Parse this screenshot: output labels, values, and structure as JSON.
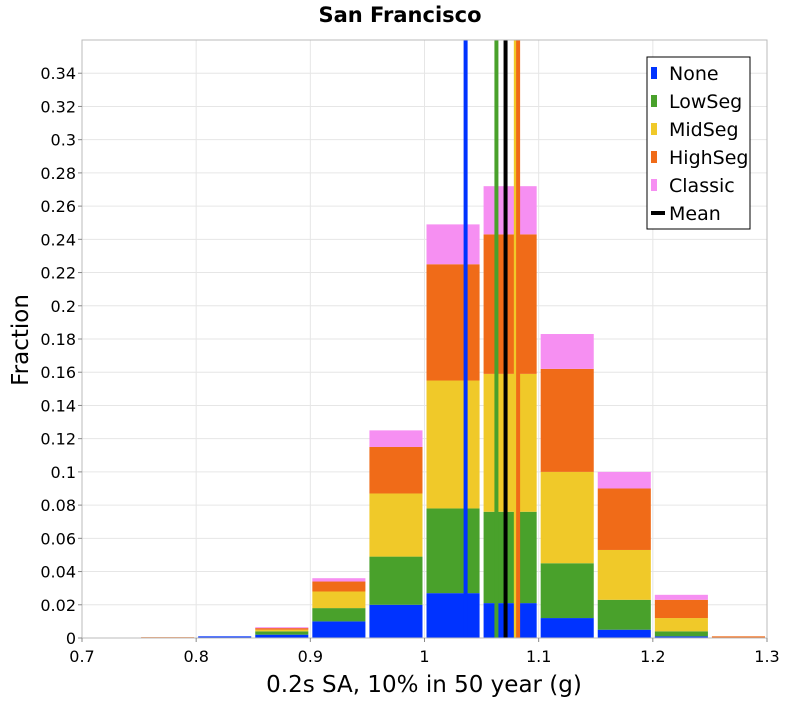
{
  "chart_data": {
    "type": "bar",
    "title": "San Francisco",
    "xlabel": "0.2s SA, 10% in 50 year (g)",
    "ylabel": "Fraction",
    "xlim": [
      0.7,
      1.3
    ],
    "ylim": [
      0,
      0.36
    ],
    "grid": true,
    "legend_position": "top-right",
    "x_ticks": [
      "0.7",
      "0.8",
      "0.9",
      "1",
      "1.1",
      "1.2",
      "1.3"
    ],
    "x_tick_values": [
      0.7,
      0.8,
      0.9,
      1.0,
      1.1,
      1.2,
      1.3
    ],
    "y_ticks": [
      "0",
      "0.02",
      "0.04",
      "0.06",
      "0.08",
      "0.1",
      "0.12",
      "0.14",
      "0.16",
      "0.18",
      "0.2",
      "0.22",
      "0.24",
      "0.26",
      "0.28",
      "0.3",
      "0.32",
      "0.34"
    ],
    "y_tick_values": [
      0,
      0.02,
      0.04,
      0.06,
      0.08,
      0.1,
      0.12,
      0.14,
      0.16,
      0.18,
      0.2,
      0.22,
      0.24,
      0.26,
      0.28,
      0.3,
      0.32,
      0.34
    ],
    "bin_width": 0.05,
    "bins": [
      0.725,
      0.775,
      0.825,
      0.875,
      0.925,
      0.975,
      1.025,
      1.075,
      1.125,
      1.175,
      1.225,
      1.275
    ],
    "series": [
      {
        "name": "None",
        "color": "#0033ff",
        "values": [
          0,
          0,
          0.001,
          0.002,
          0.01,
          0.02,
          0.027,
          0.021,
          0.012,
          0.005,
          0.001,
          0
        ]
      },
      {
        "name": "LowSeg",
        "color": "#49a12b",
        "values": [
          0,
          0,
          0,
          0.002,
          0.008,
          0.029,
          0.051,
          0.055,
          0.033,
          0.018,
          0.003,
          0
        ]
      },
      {
        "name": "MidSeg",
        "color": "#f0c929",
        "values": [
          0,
          0,
          0,
          0.001,
          0.01,
          0.038,
          0.077,
          0.083,
          0.055,
          0.03,
          0.008,
          0
        ]
      },
      {
        "name": "HighSeg",
        "color": "#f06b18",
        "values": [
          0,
          0.0005,
          0,
          0.001,
          0.006,
          0.028,
          0.07,
          0.084,
          0.062,
          0.037,
          0.011,
          0.001
        ]
      },
      {
        "name": "Classic",
        "color": "#f68ff2",
        "values": [
          0,
          0,
          0,
          0.0005,
          0.002,
          0.01,
          0.024,
          0.029,
          0.021,
          0.01,
          0.003,
          0
        ]
      }
    ],
    "mean_lines": [
      {
        "name": "None",
        "color": "#0033ff",
        "x": 1.036
      },
      {
        "name": "LowSeg",
        "color": "#49a12b",
        "x": 1.063
      },
      {
        "name": "MidSeg",
        "color": "#f0c929",
        "x": 1.08
      },
      {
        "name": "HighSeg",
        "color": "#f06b18",
        "x": 1.082
      },
      {
        "name": "Mean",
        "color": "#000000",
        "x": 1.071
      }
    ],
    "legend": [
      {
        "label": "None",
        "color": "#0033ff",
        "kind": "box"
      },
      {
        "label": "LowSeg",
        "color": "#49a12b",
        "kind": "box"
      },
      {
        "label": "MidSeg",
        "color": "#f0c929",
        "kind": "box"
      },
      {
        "label": "HighSeg",
        "color": "#f06b18",
        "kind": "box"
      },
      {
        "label": "Classic",
        "color": "#f68ff2",
        "kind": "box"
      },
      {
        "label": "Mean",
        "color": "#000000",
        "kind": "line"
      }
    ]
  }
}
